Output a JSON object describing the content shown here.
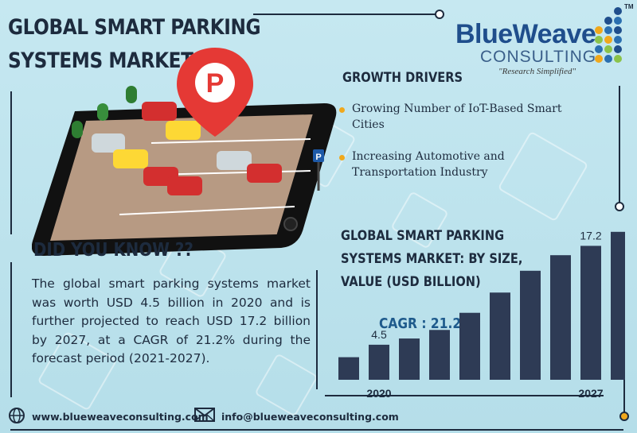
{
  "header": {
    "title_line1": "GLOBAL SMART PARKING",
    "title_line2": "SYSTEMS MARKET"
  },
  "logo": {
    "name": "BlueWeave",
    "sub": "CONSULTING",
    "tagline": "\"Research Simplified\"",
    "trademark": "TM"
  },
  "growth_drivers": {
    "title": "GROWTH DRIVERS",
    "items": [
      "Growing Number of IoT-Based Smart Cities",
      "Increasing Automotive and Transportation Industry"
    ],
    "bullet_color": "#f0a81c"
  },
  "did_you_know": {
    "title": "DID YOU KNOW ??",
    "text": "The global smart parking systems market was worth USD 4.5 billion in 2020 and is further projected to reach USD 17.2 billion by 2027, at a CAGR of 21.2% during the forecast period (2021-2027)."
  },
  "illustration": {
    "parking_sign_letter": "P",
    "pin_letter": "P"
  },
  "chart_section": {
    "title_line1": "GLOBAL SMART PARKING",
    "title_line2": "SYSTEMS MARKET: BY SIZE,",
    "title_line3": "VALUE (USD BILLION)",
    "cagr": "CAGR : 21.2%"
  },
  "chart_data": {
    "type": "bar",
    "title": "GLOBAL SMART PARKING SYSTEMS MARKET: BY SIZE, VALUE (USD BILLION)",
    "categories": [
      "",
      "2020",
      "",
      "",
      "",
      "",
      "",
      "",
      "2027",
      ""
    ],
    "values": [
      2.9,
      4.5,
      5.3,
      6.4,
      8.6,
      11.2,
      14.0,
      16.0,
      17.2,
      19.0
    ],
    "data_labels": [
      {
        "index": 1,
        "text": "4.5"
      },
      {
        "index": 8,
        "text": "17.2"
      }
    ],
    "ylim": [
      0,
      20
    ],
    "grid": false,
    "bar_color": "#2e3b55",
    "xlabel": "",
    "ylabel": ""
  },
  "footer": {
    "website": "www.blueweaveconsulting.com",
    "email": "info@blueweaveconsulting.com"
  },
  "colors": {
    "navy": "#1d2b3e",
    "accent_orange": "#f0a81c",
    "pin_red": "#e53935",
    "logo_blue": "#1f4e8c"
  }
}
